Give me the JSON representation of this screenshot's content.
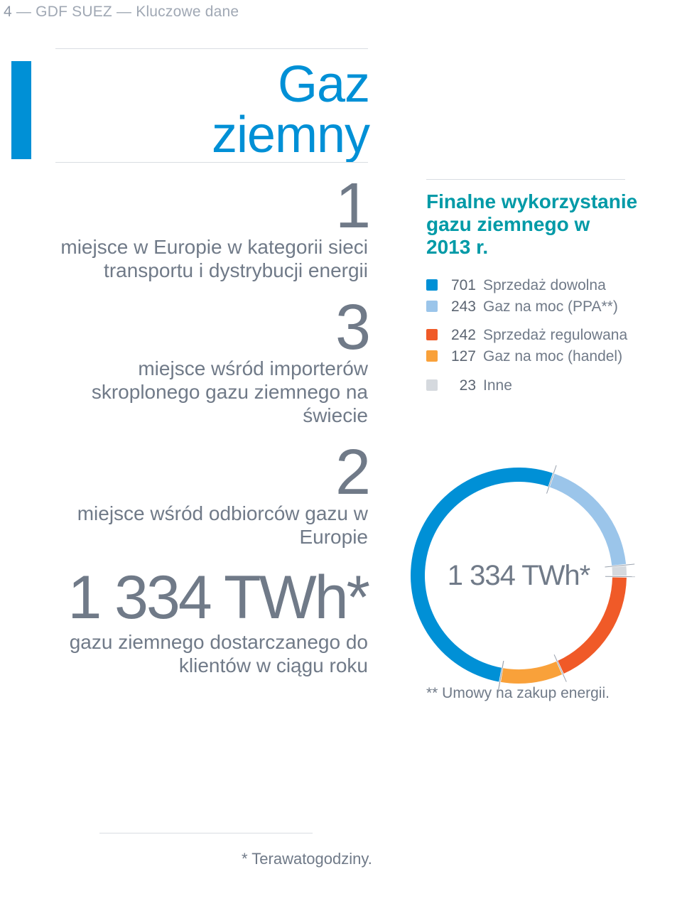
{
  "header": {
    "page_number": "4",
    "sep": " — ",
    "brand": "GDF SUEZ",
    "section": "Kluczowe dane"
  },
  "title": {
    "line1": "Gaz",
    "line2": "ziemny",
    "accent_color": "#0090d6"
  },
  "stats": [
    {
      "num": "1",
      "desc": "miejsce w Europie w kategorii sieci transportu i dystrybucji energii"
    },
    {
      "num": "3",
      "desc": "miejsce wśród importerów skroplonego gazu ziemnego na świecie"
    },
    {
      "num": "2",
      "desc": "miejsce wśród odbiorców gazu w Europie"
    }
  ],
  "big_stat": {
    "num": "1 334 TWh*",
    "desc": "gazu ziemnego dostarczanego do klientów w ciągu roku"
  },
  "right": {
    "heading": "Finalne wykorzystanie gazu ziemnego w 2013 r.",
    "legend": [
      {
        "color": "#0090d6",
        "value": "701",
        "label": "Sprzedaż dowolna"
      },
      {
        "color": "#9bc5ea",
        "value": "243",
        "label": "Gaz na moc (PPA**)"
      },
      {
        "color": "#f05a28",
        "value": "242",
        "label": "Sprzedaż regulowana"
      },
      {
        "color": "#f9a13a",
        "value": "127",
        "label": "Gaz na moc (handel)"
      },
      {
        "color": "#d5d9de",
        "value": "23",
        "label": "Inne"
      }
    ],
    "footnote": "** Umowy na zakup energii."
  },
  "donut": {
    "type": "donut",
    "center_text": "1 334 TWh*",
    "size": 340,
    "inner_radius": 132,
    "outer_radius": 152,
    "gap_color": "#ffffff",
    "tick_color": "#9aa2ae",
    "segments": [
      {
        "value": 701,
        "color": "#0090d6"
      },
      {
        "value": 243,
        "color": "#9bc5ea"
      },
      {
        "value": 23,
        "color": "#d5d9de"
      },
      {
        "value": 242,
        "color": "#f05a28"
      },
      {
        "value": 127,
        "color": "#f9a13a"
      }
    ],
    "start_angle_deg": 100
  },
  "bottom_footnote": "* Terawatogodziny."
}
